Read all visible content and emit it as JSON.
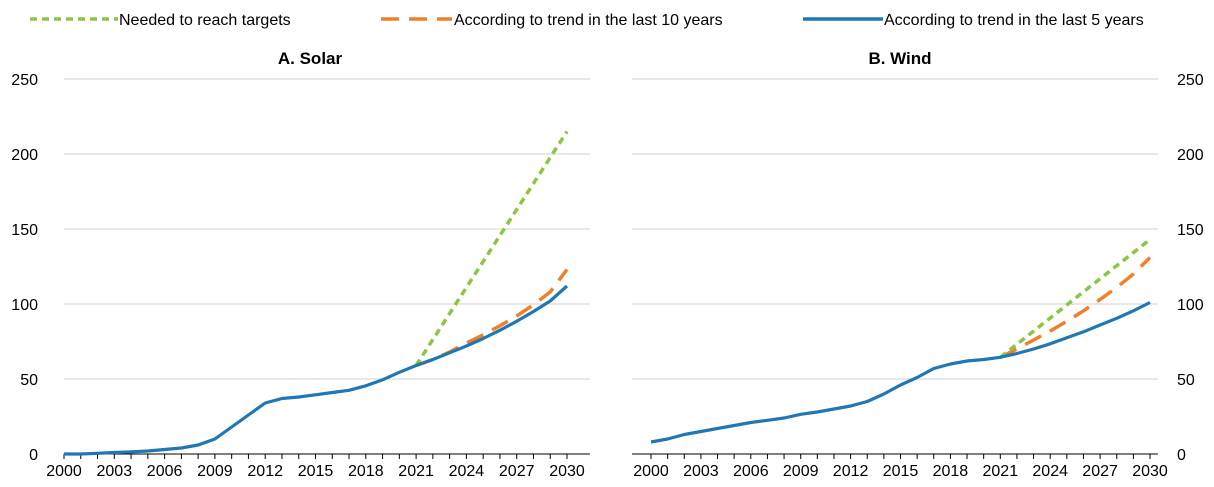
{
  "legend": {
    "placement": "top",
    "items": [
      {
        "label": "Needed to reach targets",
        "color": "#8cc641",
        "style": "dotted"
      },
      {
        "label": "According to trend in the last 10 years",
        "color": "#f07f2a",
        "style": "dashed"
      },
      {
        "label": "According to trend in the last 5 years",
        "color": "#1f77b4",
        "style": "solid"
      }
    ]
  },
  "chart_data": [
    {
      "type": "line",
      "title": "A. Solar",
      "xlabel": "",
      "ylabel": "",
      "x_ticks": [
        "2000",
        "2003",
        "2006",
        "2009",
        "2012",
        "2015",
        "2018",
        "2021",
        "2024",
        "2027",
        "2030"
      ],
      "y_ticks": [
        "0",
        "50",
        "100",
        "150",
        "200",
        "250"
      ],
      "ylim": [
        0,
        250
      ],
      "xlim": [
        2000,
        2030
      ],
      "y_axis_side": "left",
      "grid": "horizontal",
      "series": [
        {
          "name": "According to trend in the last 5 years",
          "color": "#1f77b4",
          "style": "solid",
          "x": [
            2000,
            2001,
            2002,
            2003,
            2004,
            2005,
            2006,
            2007,
            2008,
            2009,
            2010,
            2011,
            2012,
            2013,
            2014,
            2015,
            2016,
            2017,
            2018,
            2019,
            2020,
            2021,
            2022,
            2023,
            2024,
            2025,
            2026,
            2027,
            2028,
            2029,
            2030
          ],
          "y": [
            0,
            0,
            0.5,
            1,
            1.5,
            2,
            3,
            4,
            6,
            10,
            18,
            26,
            34,
            37,
            38,
            39.5,
            41,
            42.5,
            45.5,
            49.5,
            54.5,
            59,
            63,
            67.5,
            72,
            77,
            82.5,
            88.5,
            95,
            102,
            112
          ]
        },
        {
          "name": "According to trend in the last 10 years",
          "color": "#f07f2a",
          "style": "dashed",
          "x": [
            2021,
            2022,
            2023,
            2024,
            2025,
            2026,
            2027,
            2028,
            2029,
            2030
          ],
          "y": [
            59,
            63,
            68,
            74,
            79.5,
            85.5,
            92,
            99.5,
            108,
            123
          ]
        },
        {
          "name": "Needed to reach targets",
          "color": "#8cc641",
          "style": "dotted",
          "x": [
            2021,
            2030
          ],
          "y": [
            59,
            215
          ]
        }
      ]
    },
    {
      "type": "line",
      "title": "B. Wind",
      "xlabel": "",
      "ylabel": "",
      "x_ticks": [
        "2000",
        "2003",
        "2006",
        "2009",
        "2012",
        "2015",
        "2018",
        "2021",
        "2024",
        "2027",
        "2030"
      ],
      "y_ticks": [
        "0",
        "50",
        "100",
        "150",
        "200",
        "250"
      ],
      "ylim": [
        0,
        250
      ],
      "xlim": [
        2000,
        2030
      ],
      "y_axis_side": "right",
      "grid": "horizontal",
      "series": [
        {
          "name": "According to trend in the last 5 years",
          "color": "#1f77b4",
          "style": "solid",
          "x": [
            2000,
            2001,
            2002,
            2003,
            2004,
            2005,
            2006,
            2007,
            2008,
            2009,
            2010,
            2011,
            2012,
            2013,
            2014,
            2015,
            2016,
            2017,
            2018,
            2019,
            2020,
            2021,
            2022,
            2023,
            2024,
            2025,
            2026,
            2027,
            2028,
            2029,
            2030
          ],
          "y": [
            8,
            10,
            13,
            15,
            17,
            19,
            21,
            22.5,
            24,
            26.5,
            28,
            30,
            32,
            35,
            40,
            46,
            51,
            57,
            60,
            62,
            63,
            64.5,
            67,
            70,
            73.5,
            77.5,
            81.5,
            86,
            90.5,
            95.5,
            101
          ]
        },
        {
          "name": "According to trend in the last 10 years",
          "color": "#f07f2a",
          "style": "dashed",
          "x": [
            2021,
            2022,
            2023,
            2024,
            2025,
            2026,
            2027,
            2028,
            2029,
            2030
          ],
          "y": [
            64.5,
            70,
            76,
            82,
            88.5,
            95.5,
            103,
            111,
            120,
            131
          ]
        },
        {
          "name": "Needed to reach targets",
          "color": "#8cc641",
          "style": "dotted",
          "x": [
            2021,
            2030
          ],
          "y": [
            64.5,
            143
          ]
        }
      ]
    }
  ]
}
